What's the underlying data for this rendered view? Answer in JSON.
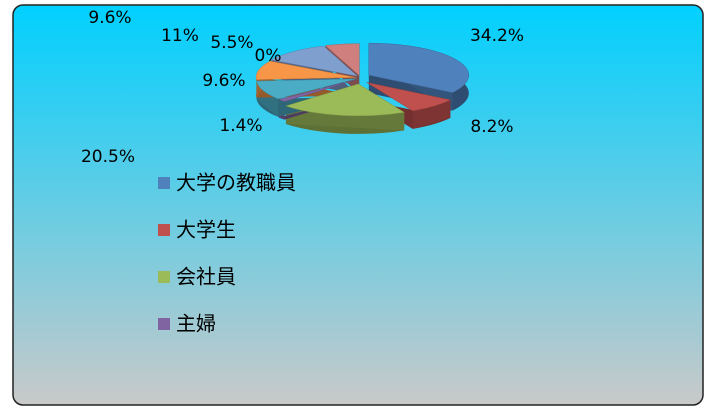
{
  "chart_data": {
    "type": "pie",
    "categories": [
      "大学の教職員",
      "大学生",
      "会社員",
      "主婦",
      null,
      null,
      null,
      null,
      null
    ],
    "values": [
      34.2,
      8.2,
      20.5,
      1.4,
      9.6,
      9.6,
      11,
      5.5,
      0
    ],
    "value_labels": [
      "34.2%",
      "8.2%",
      "20.5%",
      "1.4%",
      "9.6%",
      "9.6%",
      "11%",
      "5.5%",
      "0%"
    ],
    "colors": [
      "#4f81bd",
      "#c0504d",
      "#9bbb59",
      "#8064a2",
      "#4bacc6",
      "#f79646",
      "#7f9fcf",
      "#cf7f7d",
      "#bfcf8f"
    ],
    "legend": "left"
  }
}
